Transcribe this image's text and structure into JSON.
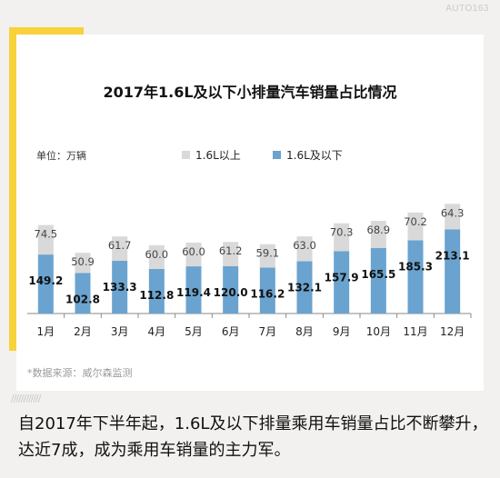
{
  "brand": "AUTO163",
  "chart_data": {
    "type": "bar",
    "stacked": true,
    "title": "2017年1.6L及以下小排量汽车销量占比情况",
    "unit": "单位：万辆",
    "categories": [
      "1月",
      "2月",
      "3月",
      "4月",
      "5月",
      "6月",
      "7月",
      "8月",
      "9月",
      "10月",
      "11月",
      "12月"
    ],
    "series": [
      {
        "name": "1.6L及以下",
        "color": "#6aa3cf",
        "values": [
          149.2,
          102.8,
          133.3,
          112.8,
          119.4,
          120.0,
          116.2,
          132.1,
          157.9,
          165.5,
          185.3,
          213.1
        ]
      },
      {
        "name": "1.6L以上",
        "color": "#d9d9d9",
        "values": [
          74.5,
          50.9,
          61.7,
          60.0,
          60.0,
          61.2,
          59.1,
          63.0,
          70.3,
          68.9,
          70.2,
          64.3
        ]
      }
    ],
    "legend_position": "top",
    "grid": false
  },
  "source": "*数据来源：威尔森监测",
  "caption": "自2017年下半年起，1.6L及以下排量乘用车销量占比不断攀升，达近7成，成为乘用车销量的主力军。"
}
